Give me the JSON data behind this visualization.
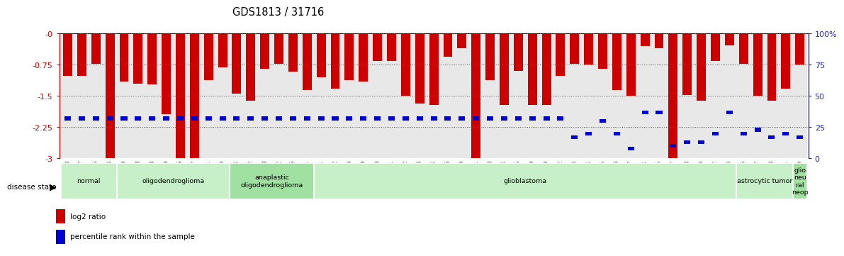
{
  "title": "GDS1813 / 31716",
  "samples": [
    "GSM40663",
    "GSM40667",
    "GSM40675",
    "GSM40703",
    "GSM40660",
    "GSM40668",
    "GSM40678",
    "GSM40679",
    "GSM40686",
    "GSM40687",
    "GSM40691",
    "GSM40699",
    "GSM40664",
    "GSM40682",
    "GSM40688",
    "GSM40702",
    "GSM40706",
    "GSM40711",
    "GSM40661",
    "GSM40662",
    "GSM40666",
    "GSM40669",
    "GSM40670",
    "GSM40671",
    "GSM40672",
    "GSM40673",
    "GSM40674",
    "GSM40676",
    "GSM40680",
    "GSM40681",
    "GSM40683",
    "GSM40684",
    "GSM40685",
    "GSM40689",
    "GSM40690",
    "GSM40692",
    "GSM40693",
    "GSM40694",
    "GSM40695",
    "GSM40696",
    "GSM40697",
    "GSM40704",
    "GSM40705",
    "GSM40707",
    "GSM40708",
    "GSM40709",
    "GSM40712",
    "GSM40713",
    "GSM40665",
    "GSM40677",
    "GSM40698",
    "GSM40701",
    "GSM40710"
  ],
  "log2_ratio": [
    -1.02,
    -1.02,
    -0.72,
    -3.0,
    -1.15,
    -1.2,
    -1.22,
    -1.93,
    -3.0,
    -3.0,
    -1.12,
    -0.82,
    -1.45,
    -1.62,
    -0.85,
    -0.72,
    -0.92,
    -1.35,
    -1.05,
    -1.32,
    -1.12,
    -1.15,
    -0.65,
    -0.65,
    -1.5,
    -1.68,
    -1.72,
    -0.55,
    -0.35,
    -3.0,
    -1.12,
    -1.72,
    -0.9,
    -1.72,
    -1.72,
    -1.02,
    -0.72,
    -0.75,
    -0.85,
    -1.35,
    -1.5,
    -0.3,
    -0.35,
    -3.0,
    -1.48,
    -1.62,
    -0.65,
    -0.28,
    -0.72,
    -1.5,
    -1.62,
    -1.32,
    -0.75
  ],
  "percentile": [
    32,
    32,
    32,
    32,
    32,
    32,
    32,
    32,
    32,
    32,
    32,
    32,
    32,
    32,
    32,
    32,
    32,
    32,
    32,
    32,
    32,
    32,
    32,
    32,
    32,
    32,
    32,
    32,
    32,
    32,
    32,
    32,
    32,
    32,
    32,
    32,
    17,
    20,
    30,
    20,
    8,
    37,
    37,
    10,
    13,
    13,
    20,
    37,
    20,
    23,
    17,
    20,
    17
  ],
  "disease_groups": [
    {
      "label": "normal",
      "start": 0,
      "end": 4,
      "color": "#c8f0c8"
    },
    {
      "label": "oligodendroglioma",
      "start": 4,
      "end": 12,
      "color": "#c8f0c8"
    },
    {
      "label": "anaplastic\noligodendroglioma",
      "start": 12,
      "end": 18,
      "color": "#a0e0a0"
    },
    {
      "label": "glioblastoma",
      "start": 18,
      "end": 48,
      "color": "#c8f0c8"
    },
    {
      "label": "astrocytic tumor",
      "start": 48,
      "end": 52,
      "color": "#c8f0c8"
    },
    {
      "label": "glio\nneu\nral\nneop",
      "start": 52,
      "end": 53,
      "color": "#a0e0a0"
    }
  ],
  "ylim_left": [
    -3.0,
    0.0
  ],
  "yticks_left": [
    0.0,
    -0.75,
    -1.5,
    -2.25,
    -3.0
  ],
  "ytick_labels_left": [
    "-0",
    "-0.75",
    "-1.5",
    "-2.25",
    "-3"
  ],
  "yticks_right": [
    0,
    25,
    50,
    75,
    100
  ],
  "ytick_labels_right": [
    "0",
    "25",
    "50",
    "75",
    "100%"
  ],
  "bar_color": "#cc0000",
  "blue_color": "#0000cc",
  "left_axis_color": "#cc0000",
  "right_axis_color": "#2222cc",
  "grid_color": "#555555",
  "bg_stripe": "#e8e8e8"
}
